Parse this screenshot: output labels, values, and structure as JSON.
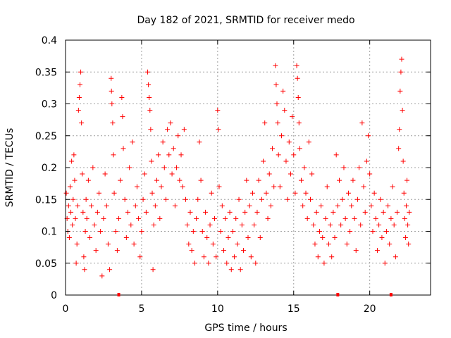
{
  "chart_data": {
    "type": "scatter",
    "title": "Day 182 of 2021, SRMTID for receiver medo",
    "xlabel": "GPS time / hours",
    "ylabel": "SRMTID / TECUs",
    "xlim": [
      0,
      24
    ],
    "ylim": [
      0,
      0.4
    ],
    "x_ticks": [
      0,
      5,
      10,
      15,
      20
    ],
    "x_tick_labels": [
      "0",
      "5",
      "10",
      "15",
      "20"
    ],
    "y_ticks": [
      0,
      0.05,
      0.1,
      0.15,
      0.2,
      0.25,
      0.3,
      0.35,
      0.4
    ],
    "y_tick_labels": [
      "0",
      "0.05",
      "0.1",
      "0.15",
      "0.2",
      "0.25",
      "0.3",
      "0.35",
      "0.4"
    ],
    "grid": true,
    "marker": "+",
    "color": "#ff0000",
    "zero_markers_x": [
      3.5,
      17.9,
      21.4
    ],
    "series": [
      {
        "name": "SRMTID",
        "points": [
          [
            0.05,
            0.16
          ],
          [
            0.1,
            0.12
          ],
          [
            0.15,
            0.1
          ],
          [
            0.2,
            0.14
          ],
          [
            0.25,
            0.09
          ],
          [
            0.3,
            0.17
          ],
          [
            0.35,
            0.13
          ],
          [
            0.4,
            0.21
          ],
          [
            0.45,
            0.11
          ],
          [
            0.5,
            0.15
          ],
          [
            0.55,
            0.22
          ],
          [
            0.6,
            0.18
          ],
          [
            0.65,
            0.12
          ],
          [
            0.7,
            0.05
          ],
          [
            0.75,
            0.08
          ],
          [
            0.8,
            0.14
          ],
          [
            0.85,
            0.29
          ],
          [
            0.9,
            0.31
          ],
          [
            0.95,
            0.33
          ],
          [
            1.0,
            0.35
          ],
          [
            1.05,
            0.27
          ],
          [
            1.1,
            0.19
          ],
          [
            1.15,
            0.13
          ],
          [
            1.2,
            0.06
          ],
          [
            1.25,
            0.04
          ],
          [
            1.3,
            0.1
          ],
          [
            1.35,
            0.15
          ],
          [
            1.4,
            0.12
          ],
          [
            1.5,
            0.18
          ],
          [
            1.6,
            0.09
          ],
          [
            1.7,
            0.14
          ],
          [
            1.8,
            0.2
          ],
          [
            1.9,
            0.11
          ],
          [
            2.0,
            0.07
          ],
          [
            2.1,
            0.13
          ],
          [
            2.2,
            0.16
          ],
          [
            2.3,
            0.1
          ],
          [
            2.4,
            0.03
          ],
          [
            2.5,
            0.12
          ],
          [
            2.6,
            0.19
          ],
          [
            2.7,
            0.14
          ],
          [
            2.8,
            0.08
          ],
          [
            2.9,
            0.04
          ],
          [
            3.0,
            0.34
          ],
          [
            3.02,
            0.32
          ],
          [
            3.05,
            0.3
          ],
          [
            3.1,
            0.27
          ],
          [
            3.15,
            0.22
          ],
          [
            3.2,
            0.16
          ],
          [
            3.3,
            0.1
          ],
          [
            3.4,
            0.07
          ],
          [
            3.5,
            0.12
          ],
          [
            3.6,
            0.18
          ],
          [
            3.7,
            0.31
          ],
          [
            3.75,
            0.28
          ],
          [
            3.8,
            0.23
          ],
          [
            3.9,
            0.15
          ],
          [
            4.0,
            0.09
          ],
          [
            4.1,
            0.13
          ],
          [
            4.2,
            0.2
          ],
          [
            4.3,
            0.11
          ],
          [
            4.4,
            0.24
          ],
          [
            4.5,
            0.08
          ],
          [
            4.6,
            0.14
          ],
          [
            4.7,
            0.17
          ],
          [
            4.8,
            0.12
          ],
          [
            4.9,
            0.06
          ],
          [
            5.0,
            0.1
          ],
          [
            5.1,
            0.15
          ],
          [
            5.2,
            0.19
          ],
          [
            5.3,
            0.13
          ],
          [
            5.4,
            0.35
          ],
          [
            5.45,
            0.33
          ],
          [
            5.5,
            0.31
          ],
          [
            5.55,
            0.29
          ],
          [
            5.6,
            0.26
          ],
          [
            5.65,
            0.21
          ],
          [
            5.7,
            0.16
          ],
          [
            5.75,
            0.04
          ],
          [
            5.8,
            0.11
          ],
          [
            5.9,
            0.14
          ],
          [
            6.0,
            0.18
          ],
          [
            6.1,
            0.22
          ],
          [
            6.2,
            0.12
          ],
          [
            6.3,
            0.17
          ],
          [
            6.4,
            0.24
          ],
          [
            6.5,
            0.2
          ],
          [
            6.6,
            0.15
          ],
          [
            6.7,
            0.26
          ],
          [
            6.8,
            0.22
          ],
          [
            6.9,
            0.27
          ],
          [
            7.0,
            0.19
          ],
          [
            7.1,
            0.23
          ],
          [
            7.2,
            0.14
          ],
          [
            7.3,
            0.2
          ],
          [
            7.4,
            0.25
          ],
          [
            7.5,
            0.18
          ],
          [
            7.6,
            0.22
          ],
          [
            7.7,
            0.17
          ],
          [
            7.8,
            0.26
          ],
          [
            7.9,
            0.15
          ],
          [
            8.0,
            0.11
          ],
          [
            8.1,
            0.08
          ],
          [
            8.2,
            0.13
          ],
          [
            8.3,
            0.07
          ],
          [
            8.4,
            0.1
          ],
          [
            8.5,
            0.05
          ],
          [
            8.6,
            0.12
          ],
          [
            8.7,
            0.15
          ],
          [
            8.8,
            0.24
          ],
          [
            8.9,
            0.18
          ],
          [
            9.0,
            0.1
          ],
          [
            9.1,
            0.06
          ],
          [
            9.2,
            0.13
          ],
          [
            9.3,
            0.09
          ],
          [
            9.4,
            0.05
          ],
          [
            9.5,
            0.11
          ],
          [
            9.6,
            0.16
          ],
          [
            9.7,
            0.08
          ],
          [
            9.8,
            0.12
          ],
          [
            9.9,
            0.06
          ],
          [
            10.0,
            0.29
          ],
          [
            10.05,
            0.26
          ],
          [
            10.1,
            0.17
          ],
          [
            10.2,
            0.1
          ],
          [
            10.3,
            0.14
          ],
          [
            10.4,
            0.07
          ],
          [
            10.5,
            0.12
          ],
          [
            10.6,
            0.05
          ],
          [
            10.7,
            0.09
          ],
          [
            10.8,
            0.13
          ],
          [
            10.9,
            0.04
          ],
          [
            11.0,
            0.1
          ],
          [
            11.1,
            0.06
          ],
          [
            11.2,
            0.12
          ],
          [
            11.3,
            0.08
          ],
          [
            11.4,
            0.15
          ],
          [
            11.5,
            0.04
          ],
          [
            11.6,
            0.11
          ],
          [
            11.7,
            0.07
          ],
          [
            11.8,
            0.13
          ],
          [
            11.9,
            0.18
          ],
          [
            12.0,
            0.09
          ],
          [
            12.1,
            0.14
          ],
          [
            12.2,
            0.06
          ],
          [
            12.3,
            0.16
          ],
          [
            12.4,
            0.11
          ],
          [
            12.5,
            0.05
          ],
          [
            12.6,
            0.13
          ],
          [
            12.7,
            0.18
          ],
          [
            12.8,
            0.09
          ],
          [
            12.9,
            0.15
          ],
          [
            13.0,
            0.21
          ],
          [
            13.1,
            0.27
          ],
          [
            13.2,
            0.16
          ],
          [
            13.3,
            0.12
          ],
          [
            13.4,
            0.19
          ],
          [
            13.5,
            0.14
          ],
          [
            13.6,
            0.23
          ],
          [
            13.7,
            0.17
          ],
          [
            13.8,
            0.36
          ],
          [
            13.85,
            0.33
          ],
          [
            13.9,
            0.3
          ],
          [
            13.95,
            0.27
          ],
          [
            14.0,
            0.22
          ],
          [
            14.1,
            0.17
          ],
          [
            14.2,
            0.25
          ],
          [
            14.3,
            0.32
          ],
          [
            14.4,
            0.29
          ],
          [
            14.5,
            0.21
          ],
          [
            14.6,
            0.15
          ],
          [
            14.7,
            0.24
          ],
          [
            14.8,
            0.19
          ],
          [
            14.9,
            0.28
          ],
          [
            15.0,
            0.22
          ],
          [
            15.1,
            0.16
          ],
          [
            15.2,
            0.36
          ],
          [
            15.25,
            0.34
          ],
          [
            15.3,
            0.31
          ],
          [
            15.35,
            0.27
          ],
          [
            15.4,
            0.23
          ],
          [
            15.5,
            0.18
          ],
          [
            15.6,
            0.14
          ],
          [
            15.7,
            0.2
          ],
          [
            15.8,
            0.16
          ],
          [
            15.9,
            0.12
          ],
          [
            16.0,
            0.24
          ],
          [
            16.1,
            0.15
          ],
          [
            16.2,
            0.19
          ],
          [
            16.3,
            0.11
          ],
          [
            16.4,
            0.08
          ],
          [
            16.5,
            0.13
          ],
          [
            16.6,
            0.06
          ],
          [
            16.7,
            0.1
          ],
          [
            16.8,
            0.14
          ],
          [
            16.9,
            0.09
          ],
          [
            17.0,
            0.05
          ],
          [
            17.1,
            0.12
          ],
          [
            17.2,
            0.17
          ],
          [
            17.3,
            0.08
          ],
          [
            17.4,
            0.11
          ],
          [
            17.5,
            0.06
          ],
          [
            17.6,
            0.13
          ],
          [
            17.7,
            0.09
          ],
          [
            17.8,
            0.22
          ],
          [
            17.9,
            0.14
          ],
          [
            18.0,
            0.18
          ],
          [
            18.1,
            0.11
          ],
          [
            18.2,
            0.15
          ],
          [
            18.3,
            0.2
          ],
          [
            18.4,
            0.12
          ],
          [
            18.5,
            0.08
          ],
          [
            18.6,
            0.16
          ],
          [
            18.7,
            0.1
          ],
          [
            18.8,
            0.14
          ],
          [
            18.9,
            0.18
          ],
          [
            19.0,
            0.12
          ],
          [
            19.1,
            0.07
          ],
          [
            19.2,
            0.15
          ],
          [
            19.3,
            0.2
          ],
          [
            19.4,
            0.11
          ],
          [
            19.5,
            0.27
          ],
          [
            19.6,
            0.17
          ],
          [
            19.7,
            0.13
          ],
          [
            19.8,
            0.21
          ],
          [
            19.9,
            0.25
          ],
          [
            20.0,
            0.19
          ],
          [
            20.1,
            0.14
          ],
          [
            20.2,
            0.1
          ],
          [
            20.3,
            0.16
          ],
          [
            20.4,
            0.12
          ],
          [
            20.5,
            0.07
          ],
          [
            20.6,
            0.11
          ],
          [
            20.7,
            0.15
          ],
          [
            20.8,
            0.09
          ],
          [
            20.9,
            0.13
          ],
          [
            21.0,
            0.05
          ],
          [
            21.1,
            0.1
          ],
          [
            21.2,
            0.14
          ],
          [
            21.3,
            0.08
          ],
          [
            21.4,
            0.12
          ],
          [
            21.5,
            0.17
          ],
          [
            21.6,
            0.11
          ],
          [
            21.7,
            0.06
          ],
          [
            21.8,
            0.13
          ],
          [
            21.9,
            0.23
          ],
          [
            21.95,
            0.26
          ],
          [
            22.0,
            0.32
          ],
          [
            22.05,
            0.35
          ],
          [
            22.1,
            0.37
          ],
          [
            22.15,
            0.29
          ],
          [
            22.2,
            0.21
          ],
          [
            22.25,
            0.16
          ],
          [
            22.3,
            0.12
          ],
          [
            22.35,
            0.09
          ],
          [
            22.4,
            0.14
          ],
          [
            22.45,
            0.18
          ],
          [
            22.5,
            0.11
          ],
          [
            22.55,
            0.08
          ],
          [
            22.6,
            0.13
          ]
        ]
      }
    ]
  }
}
